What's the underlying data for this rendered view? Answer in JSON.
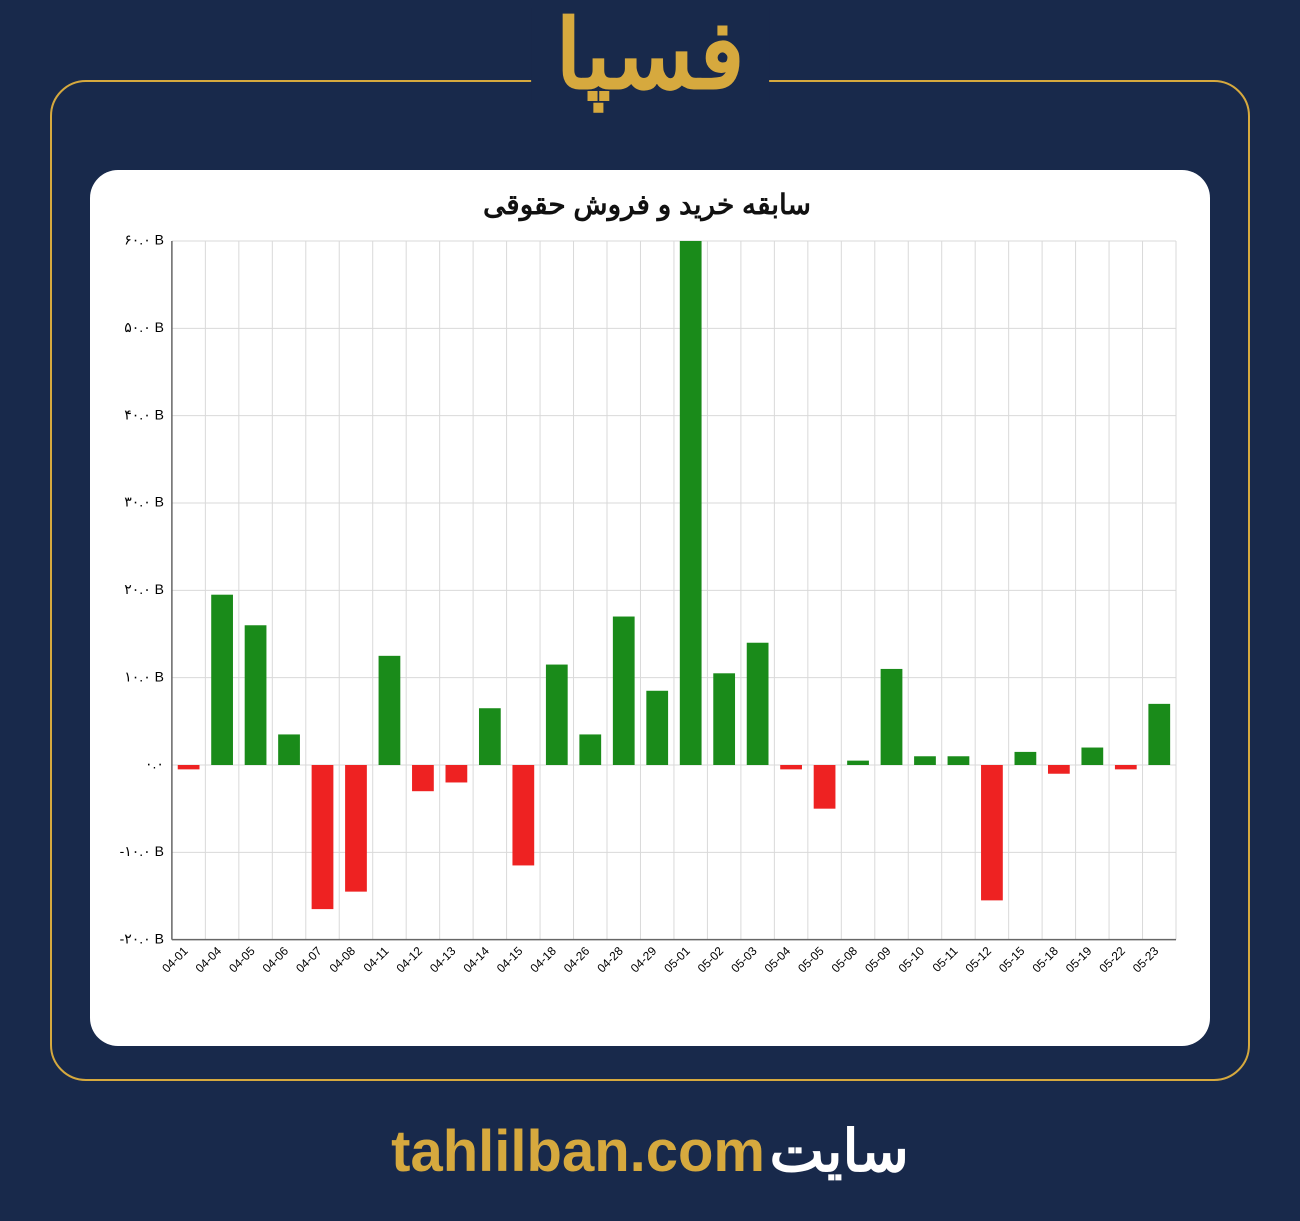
{
  "brand": {
    "title": "فسپا",
    "title_color": "#d6a93e",
    "page_bg": "#18294b",
    "frame_border": "#d6a93e"
  },
  "footer": {
    "site_label": "سایت",
    "url": "tahlilban.com",
    "label_color": "#ffffff",
    "url_color": "#d6a93e"
  },
  "chart": {
    "type": "bar",
    "title": "سابقه خرید و فروش حقوقی",
    "title_fontsize": 28,
    "title_color": "#111111",
    "background_color": "#ffffff",
    "grid_color": "#d9d9d9",
    "axis_color": "#666666",
    "positive_color": "#1a8b1a",
    "negative_color": "#ee2222",
    "bar_width": 0.65,
    "y_axis": {
      "min": -20,
      "max": 60,
      "tick_step": 10,
      "tick_labels": [
        "-۲۰.۰ B",
        "-۱۰.۰ B",
        "۰.۰",
        "۱۰.۰ B",
        "۲۰.۰ B",
        "۳۰.۰ B",
        "۴۰.۰ B",
        "۵۰.۰ B",
        "۶۰.۰ B"
      ],
      "tick_values": [
        -20,
        -10,
        0,
        10,
        20,
        30,
        40,
        50,
        60
      ],
      "label_fontsize": 14
    },
    "x_axis": {
      "categories": [
        "04-01",
        "04-04",
        "04-05",
        "04-06",
        "04-07",
        "04-08",
        "04-11",
        "04-12",
        "04-13",
        "04-14",
        "04-15",
        "04-18",
        "04-26",
        "04-28",
        "04-29",
        "05-01",
        "05-02",
        "05-03",
        "05-04",
        "05-05",
        "05-08",
        "05-09",
        "05-10",
        "05-11",
        "05-12",
        "05-15",
        "05-18",
        "05-19",
        "05-22",
        "05-23"
      ],
      "label_fontsize": 12,
      "label_rotation": -45
    },
    "values": [
      -0.5,
      19.5,
      16,
      3.5,
      -16.5,
      -14.5,
      12.5,
      -3,
      -2,
      6.5,
      -11.5,
      11.5,
      3.5,
      17,
      8.5,
      60,
      10.5,
      14,
      -0.5,
      -5,
      0.5,
      11,
      1,
      1,
      -15.5,
      1.5,
      -1,
      2,
      -0.5,
      7
    ]
  }
}
